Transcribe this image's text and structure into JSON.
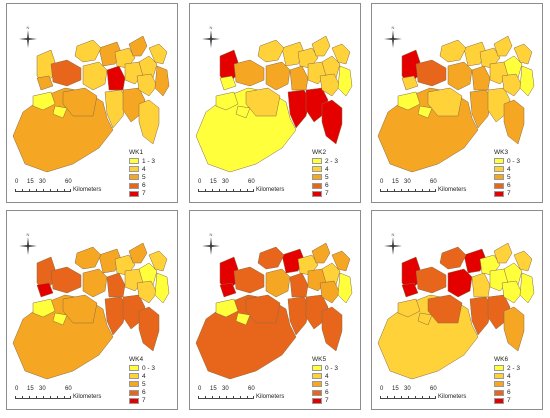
{
  "colors": {
    "c1": "#ffff3c",
    "c2": "#ffd23a",
    "c3": "#f5a623",
    "c4": "#e8661b",
    "c5": "#e50000",
    "border": "#8a6a40"
  },
  "scale": {
    "labels": [
      "0",
      "15",
      "30",
      "60"
    ],
    "unit": "Kilometers"
  },
  "north_arrow": {
    "icon": "north-arrow-icon",
    "label": "N"
  },
  "panels": [
    {
      "title": "WK1",
      "legend": [
        "1 - 3",
        "4",
        "5",
        "6",
        "7"
      ],
      "regions": [
        3,
        2,
        4,
        2,
        3,
        5,
        2,
        3,
        2,
        3,
        2,
        2,
        2,
        2,
        2,
        3,
        3,
        1,
        1,
        3,
        2
      ]
    },
    {
      "title": "WK2",
      "legend": [
        "2 - 3",
        "4",
        "5",
        "6",
        "7"
      ],
      "regions": [
        1,
        5,
        3,
        3,
        2,
        3,
        2,
        2,
        5,
        5,
        5,
        2,
        2,
        2,
        2,
        1,
        2,
        1,
        1,
        1,
        2
      ]
    },
    {
      "title": "WK3",
      "legend": [
        "0 - 3",
        "4",
        "5",
        "6",
        "7"
      ],
      "regions": [
        3,
        5,
        4,
        3,
        2,
        3,
        2,
        2,
        3,
        2,
        3,
        2,
        1,
        2,
        2,
        1,
        2,
        1,
        1,
        2,
        2
      ]
    },
    {
      "title": "WK4",
      "legend": [
        "0 - 3",
        "4",
        "5",
        "6",
        "7"
      ],
      "regions": [
        3,
        4,
        4,
        3,
        3,
        4,
        2,
        3,
        4,
        4,
        4,
        2,
        1,
        2,
        2,
        1,
        3,
        1,
        1,
        5,
        3
      ]
    },
    {
      "title": "WK5",
      "legend": [
        "0 - 3",
        "4",
        "5",
        "6",
        "7"
      ],
      "regions": [
        4,
        5,
        4,
        3,
        5,
        4,
        2,
        3,
        4,
        4,
        4,
        3,
        2,
        3,
        3,
        1,
        4,
        1,
        1,
        5,
        4
      ]
    },
    {
      "title": "WK6",
      "legend": [
        "2 - 3",
        "4",
        "5",
        "6",
        "7"
      ],
      "regions": [
        2,
        5,
        4,
        5,
        5,
        2,
        1,
        2,
        4,
        4,
        3,
        1,
        1,
        2,
        1,
        1,
        4,
        2,
        2,
        5,
        4
      ]
    }
  ]
}
